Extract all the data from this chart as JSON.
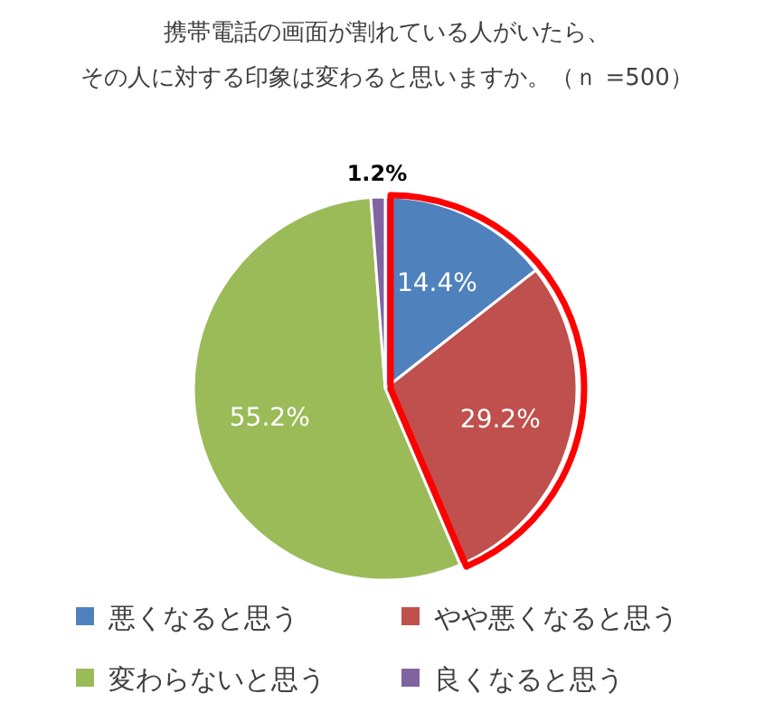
{
  "chart_data": {
    "type": "pie",
    "title": "携帯電話の画面が割れている人がいたら、",
    "subtitle": "その人に対する印象は変わると思いますか。（ｎ =500）",
    "categories": [
      "悪くなると思う",
      "やや悪くなると思う",
      "変わらないと思う",
      "良くなると思う"
    ],
    "values": [
      14.4,
      29.2,
      55.2,
      1.2
    ],
    "colors": [
      "#4f81bd",
      "#c0504d",
      "#9bbb59",
      "#8064a2"
    ],
    "value_labels": [
      "14.4%",
      "29.2%",
      "55.2%",
      "1.2%"
    ],
    "legend": "bottom"
  }
}
